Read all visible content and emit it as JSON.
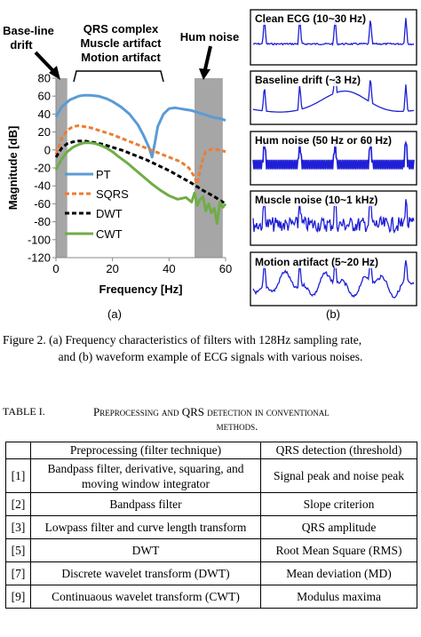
{
  "panel_a": {
    "annotations": {
      "baseline": [
        "Base-line",
        "drift"
      ],
      "qrs": [
        "QRS complex",
        "Muscle artifact",
        "Motion artifact"
      ],
      "hum": "Hum noise"
    },
    "label": "(a)"
  },
  "panel_b": {
    "label": "(b)",
    "signals": [
      "Clean ECG (10~30 Hz)",
      "Baseline drift (~3 Hz)",
      "Hum noise (50 Hz or 60 Hz)",
      "Muscle noise (10~1 kHz)",
      "Motion artifact (5~20 Hz)"
    ]
  },
  "chart_data": {
    "type": "line",
    "xlabel": "Frequency [Hz]",
    "ylabel": "Magnitude [dB]",
    "xlim": [
      0,
      60
    ],
    "ylim": [
      -120,
      80
    ],
    "xticks": [
      0,
      20,
      40,
      60
    ],
    "yticks": [
      80,
      60,
      40,
      20,
      0,
      -20,
      -40,
      -60,
      -80,
      -100,
      -120
    ],
    "grid": false,
    "legend_position": "center-left",
    "shaded_bands": [
      [
        0,
        4
      ],
      [
        49,
        59
      ]
    ],
    "series": [
      {
        "name": "PT",
        "color": "#5b9bd5",
        "style": "solid",
        "x": [
          0,
          2,
          5,
          8,
          10,
          12,
          15,
          18,
          20,
          23,
          26,
          29,
          31,
          33,
          34,
          35,
          36,
          38,
          40,
          42,
          44,
          46,
          48,
          50,
          52,
          54,
          56,
          58,
          60
        ],
        "y": [
          37,
          48,
          56,
          60,
          61,
          61,
          60,
          57,
          54,
          48,
          40,
          28,
          16,
          2,
          -8,
          8,
          26,
          40,
          46,
          47,
          46,
          45,
          44,
          42,
          40,
          38,
          36,
          35,
          33
        ]
      },
      {
        "name": "SQRS",
        "color": "#ed7d31",
        "style": "dash",
        "x": [
          0,
          2,
          4,
          6,
          8,
          10,
          12,
          14,
          17,
          20,
          24,
          28,
          32,
          36,
          40,
          44,
          47,
          49,
          50,
          51,
          52,
          53,
          55,
          58,
          60
        ],
        "y": [
          -5,
          13,
          22,
          26,
          27,
          26,
          25,
          23,
          20,
          17,
          12,
          7,
          2,
          -3,
          -8,
          -13,
          -20,
          -30,
          -38,
          -22,
          -10,
          -2,
          1,
          0,
          -2
        ]
      },
      {
        "name": "DWT",
        "color": "#000000",
        "style": "dash",
        "x": [
          0,
          2,
          4,
          6,
          8,
          10,
          12,
          14,
          17,
          20,
          24,
          28,
          32,
          36,
          40,
          44,
          48,
          52,
          56,
          60
        ],
        "y": [
          -8,
          2,
          7,
          9,
          10,
          10,
          9,
          8,
          6,
          3,
          -1,
          -6,
          -11,
          -17,
          -23,
          -30,
          -37,
          -45,
          -52,
          -60
        ]
      },
      {
        "name": "CWT",
        "color": "#70ad47",
        "style": "solid",
        "x": [
          0,
          2,
          4,
          6,
          8,
          10,
          12,
          14,
          16,
          18,
          20,
          22,
          25,
          28,
          31,
          34,
          37,
          40,
          43,
          46,
          48,
          49,
          50,
          51,
          52,
          53,
          54,
          55,
          56,
          57,
          58,
          59,
          60
        ],
        "y": [
          -22,
          -10,
          -2,
          3,
          6,
          8,
          8,
          7,
          5,
          2,
          -2,
          -7,
          -14,
          -22,
          -30,
          -38,
          -45,
          -51,
          -55,
          -53,
          -58,
          -48,
          -62,
          -55,
          -52,
          -68,
          -60,
          -70,
          -65,
          -82,
          -58,
          -64,
          -60
        ]
      }
    ]
  },
  "caption": [
    "Figure 2.    (a) Frequency characteristics of filters with 128Hz sampling rate,",
    "and (b) waveform example of ECG signals with various noises."
  ],
  "table": {
    "title_prefix": "TABLE I.",
    "title_main": "Preprocessing and QRS detection in conventional",
    "title_cont": "methods.",
    "headers": [
      "",
      "Preprocessing (filter technique)",
      "QRS detection (threshold)"
    ],
    "rows": [
      [
        "[1]",
        "Bandpass filter, derivative, squaring, and moving window integrator",
        "Signal peak and noise peak"
      ],
      [
        "[2]",
        "Bandpass filter",
        "Slope criterion"
      ],
      [
        "[3]",
        "Lowpass filter and curve length transform",
        "QRS amplitude"
      ],
      [
        "[5]",
        "DWT",
        "Root Mean Square (RMS)"
      ],
      [
        "[7]",
        "Discrete wavelet transform (DWT)",
        "Mean deviation (MD)"
      ],
      [
        "[9]",
        "Continuaous wavelet transform (CWT)",
        "Modulus maxima"
      ]
    ]
  }
}
